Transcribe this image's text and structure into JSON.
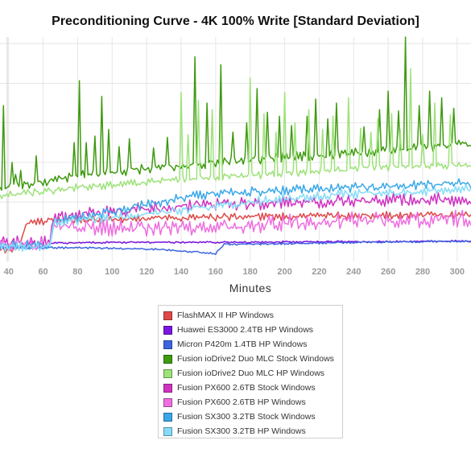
{
  "chart_data": {
    "type": "line",
    "title": "Preconditioning Curve - 4K 100% Write [Standard Deviation]",
    "xlabel": "Minutes",
    "ylabel": "",
    "xlim": [
      35,
      308
    ],
    "ylim": [
      0,
      17
    ],
    "x_ticks": [
      40,
      60,
      80,
      100,
      120,
      140,
      160,
      180,
      200,
      220,
      240,
      260,
      280,
      300
    ],
    "y_gridlines": [
      1.5,
      4.5,
      7.5,
      10.5,
      13.5,
      16.5
    ],
    "grid": true,
    "legend_position": "bottom",
    "series": [
      {
        "name": "FlashMAX II HP Windows",
        "color": "#e04848",
        "x": [
          35,
          45,
          47,
          50,
          55,
          65,
          80,
          100,
          120,
          140,
          160,
          180,
          200,
          220,
          240,
          260,
          280,
          300,
          308
        ],
        "y": [
          0.9,
          0.9,
          1.5,
          2.8,
          3.0,
          3.1,
          3.15,
          3.2,
          3.25,
          3.3,
          3.35,
          3.4,
          3.4,
          3.45,
          3.45,
          3.5,
          3.5,
          3.5,
          3.5
        ],
        "jitter": 0.2
      },
      {
        "name": "Huawei ES3000 2.4TB HP Windows",
        "color": "#7a16e0",
        "x": [
          35,
          60,
          63,
          70,
          100,
          140,
          180,
          220,
          260,
          300,
          308
        ],
        "y": [
          1.1,
          1.1,
          1.35,
          1.4,
          1.45,
          1.45,
          1.45,
          1.5,
          1.5,
          1.55,
          1.5
        ],
        "jitter": 0.05
      },
      {
        "name": "Micron P420m 1.4TB HP Windows",
        "color": "#3e64e0",
        "x": [
          35,
          60,
          63,
          100,
          130,
          160,
          165,
          200,
          240,
          280,
          308
        ],
        "y": [
          1.0,
          1.0,
          1.05,
          1.0,
          0.9,
          0.6,
          1.3,
          1.35,
          1.45,
          1.5,
          1.55
        ],
        "jitter": 0.05
      },
      {
        "name": "Fusion ioDrive2 Duo MLC Stock Windows",
        "color": "#3f9a10",
        "x": [
          35,
          60,
          80,
          100,
          120,
          140,
          160,
          180,
          200,
          220,
          240,
          260,
          280,
          300,
          308
        ],
        "y": [
          5.6,
          6.0,
          6.5,
          6.8,
          7.0,
          7.2,
          7.5,
          7.7,
          7.9,
          8.0,
          8.2,
          8.4,
          8.6,
          8.8,
          8.9
        ],
        "jitter": 0.25,
        "spikes": [
          [
            37,
            11.8
          ],
          [
            42,
            7.5
          ],
          [
            44,
            6.6
          ],
          [
            47,
            6.9
          ],
          [
            56,
            8.0
          ],
          [
            78,
            9.0
          ],
          [
            81,
            13.7
          ],
          [
            85,
            9.0
          ],
          [
            90,
            9.5
          ],
          [
            94,
            12.5
          ],
          [
            98,
            10.0
          ],
          [
            104,
            8.7
          ],
          [
            110,
            9.3
          ],
          [
            124,
            8.6
          ],
          [
            132,
            9.4
          ],
          [
            148,
            15.5
          ],
          [
            155,
            12.0
          ],
          [
            163,
            14.9
          ],
          [
            170,
            9.8
          ],
          [
            178,
            10.5
          ],
          [
            184,
            13.1
          ],
          [
            190,
            11.3
          ],
          [
            197,
            11.0
          ],
          [
            204,
            10.3
          ],
          [
            213,
            11.0
          ],
          [
            218,
            12.3
          ],
          [
            225,
            10.8
          ],
          [
            230,
            12.0
          ],
          [
            246,
            10.2
          ],
          [
            255,
            11.5
          ],
          [
            260,
            12.9
          ],
          [
            266,
            11.4
          ],
          [
            270,
            17.0
          ],
          [
            278,
            11.8
          ],
          [
            284,
            12.9
          ],
          [
            291,
            12.4
          ],
          [
            298,
            11.6
          ]
        ]
      },
      {
        "name": "Fusion ioDrive2 Duo MLC HP Windows",
        "color": "#9ee27a",
        "x": [
          35,
          60,
          80,
          100,
          120,
          140,
          160,
          180,
          200,
          220,
          240,
          260,
          280,
          300,
          308
        ],
        "y": [
          5.0,
          5.3,
          5.6,
          5.8,
          6.0,
          6.2,
          6.4,
          6.5,
          6.7,
          6.8,
          7.0,
          7.1,
          7.2,
          7.3,
          7.35
        ],
        "jitter": 0.2,
        "spikes": [
          [
            140,
            12.8
          ],
          [
            144,
            9.6
          ],
          [
            150,
            12.2
          ],
          [
            158,
            11.5
          ],
          [
            163,
            10.8
          ],
          [
            180,
            13.9
          ],
          [
            188,
            11.2
          ],
          [
            195,
            9.8
          ],
          [
            200,
            12.8
          ],
          [
            206,
            10.5
          ],
          [
            214,
            11.5
          ],
          [
            222,
            10.0
          ],
          [
            228,
            11.0
          ],
          [
            237,
            12.4
          ],
          [
            244,
            10.1
          ],
          [
            250,
            9.8
          ],
          [
            254,
            10.8
          ],
          [
            262,
            11.2
          ],
          [
            267,
            10.0
          ],
          [
            273,
            14.6
          ],
          [
            280,
            9.6
          ],
          [
            287,
            12.0
          ],
          [
            296,
            11.1
          ]
        ]
      },
      {
        "name": "Fusion PX600 2.6TB Stock Windows",
        "color": "#d033c2",
        "x": [
          35,
          64,
          66,
          80,
          100,
          120,
          140,
          160,
          180,
          200,
          220,
          240,
          260,
          280,
          300,
          308
        ],
        "y": [
          1.4,
          1.4,
          3.3,
          3.5,
          3.8,
          4.0,
          4.2,
          4.3,
          4.4,
          4.5,
          4.55,
          4.6,
          4.65,
          4.7,
          4.7,
          4.7
        ],
        "jitter": 0.35
      },
      {
        "name": "Fusion PX600 2.6TB HP Windows",
        "color": "#ee6ee0",
        "x": [
          35,
          64,
          66,
          80,
          100,
          120,
          140,
          160,
          180,
          200,
          220,
          240,
          260,
          280,
          300,
          308
        ],
        "y": [
          1.3,
          1.3,
          2.8,
          2.7,
          2.6,
          2.55,
          2.6,
          2.7,
          2.8,
          2.9,
          3.0,
          3.1,
          3.15,
          3.2,
          3.25,
          3.25
        ],
        "jitter": 0.45
      },
      {
        "name": "Fusion SX300 3.2TB Stock Windows",
        "color": "#3aa8e8",
        "x": [
          35,
          64,
          66,
          80,
          100,
          120,
          140,
          160,
          180,
          200,
          220,
          240,
          260,
          280,
          300,
          308
        ],
        "y": [
          1.2,
          1.2,
          3.0,
          3.3,
          3.8,
          4.3,
          4.8,
          5.2,
          5.3,
          5.4,
          5.5,
          5.6,
          5.7,
          5.8,
          5.9,
          5.9
        ],
        "jitter": 0.25
      },
      {
        "name": "Fusion SX300 3.2TB HP Windows",
        "color": "#86dcf8",
        "x": [
          35,
          64,
          66,
          80,
          100,
          120,
          140,
          160,
          180,
          200,
          220,
          240,
          260,
          280,
          300,
          308
        ],
        "y": [
          1.1,
          1.1,
          2.9,
          3.1,
          3.3,
          3.6,
          3.9,
          4.2,
          4.5,
          4.8,
          5.0,
          5.1,
          5.2,
          5.3,
          5.4,
          5.45
        ],
        "jitter": 0.25
      }
    ]
  }
}
